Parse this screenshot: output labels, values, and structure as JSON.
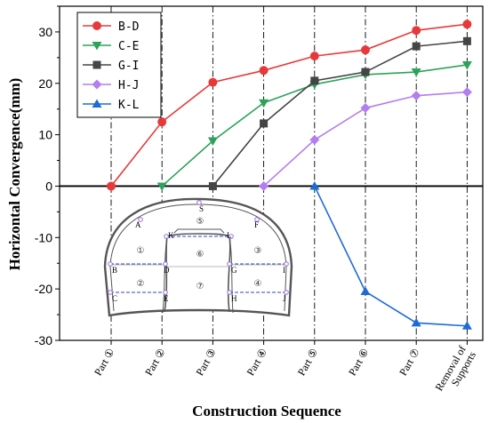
{
  "chart_data": {
    "type": "line",
    "xlabel": "Construction Sequence",
    "ylabel": "Horizontal Convergence(mm)",
    "categories": [
      "Part ①",
      "Part ②",
      "Part ③",
      "Part ④",
      "Part ⑤",
      "Part ⑥",
      "Part ⑦",
      "Removal of Supports"
    ],
    "ylim": [
      -30,
      35
    ],
    "yticks": [
      -30,
      -20,
      -10,
      0,
      10,
      20,
      30
    ],
    "legend_position": "top-left",
    "grid": false,
    "series": [
      {
        "name": "B-D",
        "color": "#e8393a",
        "marker": "circle",
        "values": [
          0,
          12.5,
          20.2,
          22.5,
          25.3,
          26.5,
          30.3,
          31.5
        ]
      },
      {
        "name": "C-E",
        "color": "#2da25a",
        "marker": "triangle-down",
        "values": [
          null,
          0,
          8.8,
          16.2,
          19.8,
          21.7,
          22.2,
          23.6
        ]
      },
      {
        "name": "G-I",
        "color": "#454545",
        "marker": "square",
        "values": [
          null,
          null,
          0,
          12.2,
          20.5,
          22.2,
          27.2,
          28.2
        ]
      },
      {
        "name": "H-J",
        "color": "#b27ef0",
        "marker": "diamond",
        "values": [
          null,
          null,
          null,
          0,
          9,
          15.2,
          17.6,
          18.3
        ]
      },
      {
        "name": "K-L",
        "color": "#1f6bd6",
        "marker": "triangle-up",
        "values": [
          null,
          null,
          null,
          null,
          0,
          -20.5,
          -26.6,
          -27.2
        ]
      }
    ],
    "inset": {
      "point_labels": [
        "S",
        "A",
        "K",
        "L",
        "F",
        "B",
        "D",
        "G",
        "I",
        "C",
        "E",
        "H",
        "J"
      ],
      "region_labels": [
        "①",
        "②",
        "③",
        "④",
        "⑤",
        "⑥",
        "⑦"
      ]
    }
  }
}
